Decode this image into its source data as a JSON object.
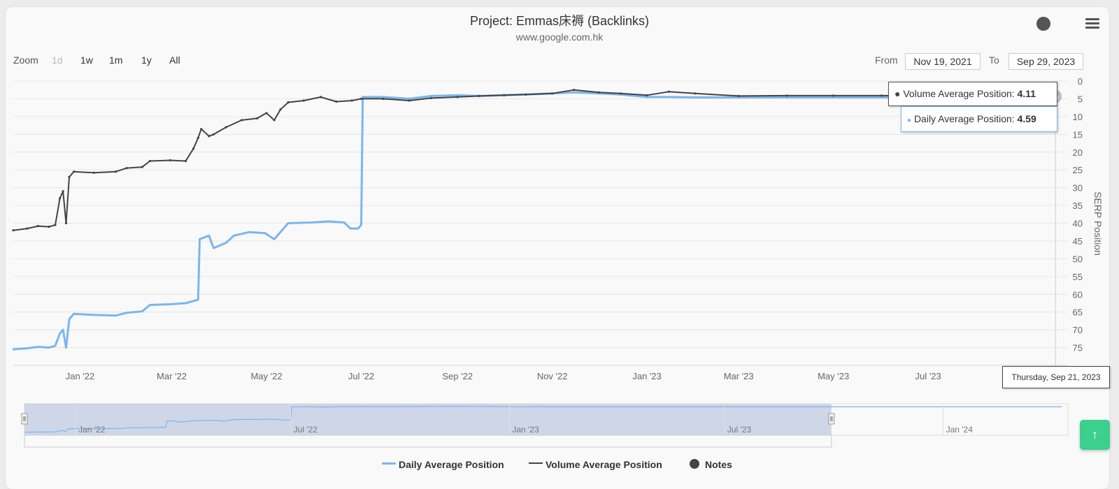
{
  "chart_data": {
    "type": "line",
    "title": "Project: Emmas床褥 (Backlinks)",
    "subtitle": "www.google.com.hk",
    "ylabel": "SERP Position",
    "ylim": [
      0,
      80
    ],
    "y_reversed": true,
    "y_ticks": [
      "0",
      "5",
      "10",
      "15",
      "20",
      "25",
      "30",
      "35",
      "40",
      "45",
      "50",
      "55",
      "60",
      "65",
      "70",
      "75"
    ],
    "x_ticks": [
      "Jan '22",
      "Mar '22",
      "May '22",
      "Jul '22",
      "Sep '22",
      "Nov '22",
      "Jan '23",
      "Mar '23",
      "May '23",
      "Jul '23"
    ],
    "xlim": [
      "2021-11-19",
      "2023-09-29"
    ],
    "series": [
      {
        "name": "Daily Average Position",
        "color": "#7cb5ec",
        "points": [
          [
            "2021-11-19",
            75.5
          ],
          [
            "2021-11-28",
            75.2
          ],
          [
            "2021-12-05",
            74.8
          ],
          [
            "2021-12-12",
            75.0
          ],
          [
            "2021-12-16",
            74.5
          ],
          [
            "2021-12-19",
            71
          ],
          [
            "2021-12-21",
            70
          ],
          [
            "2021-12-23",
            75
          ],
          [
            "2021-12-25",
            67
          ],
          [
            "2021-12-28",
            65.5
          ],
          [
            "2022-01-10",
            65.8
          ],
          [
            "2022-01-24",
            66
          ],
          [
            "2022-01-31",
            65.2
          ],
          [
            "2022-02-10",
            64.8
          ],
          [
            "2022-02-15",
            63
          ],
          [
            "2022-02-28",
            62.8
          ],
          [
            "2022-03-10",
            62.5
          ],
          [
            "2022-03-18",
            61.5
          ],
          [
            "2022-03-19",
            44.5
          ],
          [
            "2022-03-25",
            43.5
          ],
          [
            "2022-03-28",
            47
          ],
          [
            "2022-04-05",
            45.5
          ],
          [
            "2022-04-10",
            43.5
          ],
          [
            "2022-04-20",
            42.5
          ],
          [
            "2022-04-30",
            42.8
          ],
          [
            "2022-05-06",
            44.5
          ],
          [
            "2022-05-10",
            42.5
          ],
          [
            "2022-05-15",
            40
          ],
          [
            "2022-05-30",
            39.8
          ],
          [
            "2022-06-10",
            39.5
          ],
          [
            "2022-06-20",
            39.8
          ],
          [
            "2022-06-24",
            41.5
          ],
          [
            "2022-06-29",
            41.5
          ],
          [
            "2022-07-01",
            40.5
          ],
          [
            "2022-07-02",
            4.5
          ],
          [
            "2022-07-15",
            4.5
          ],
          [
            "2022-08-01",
            5
          ],
          [
            "2022-08-15",
            4.2
          ],
          [
            "2022-09-01",
            4
          ],
          [
            "2022-09-15",
            4.2
          ],
          [
            "2022-10-01",
            4
          ],
          [
            "2022-10-15",
            3.8
          ],
          [
            "2022-11-01",
            3.5
          ],
          [
            "2022-11-15",
            3.2
          ],
          [
            "2022-12-01",
            3.5
          ],
          [
            "2022-12-15",
            3.8
          ],
          [
            "2023-01-01",
            4.5
          ],
          [
            "2023-01-15",
            4.5
          ],
          [
            "2023-02-01",
            4.6
          ],
          [
            "2023-03-01",
            4.6
          ],
          [
            "2023-04-01",
            4.6
          ],
          [
            "2023-05-01",
            4.6
          ],
          [
            "2023-06-01",
            4.6
          ],
          [
            "2023-07-01",
            4.6
          ],
          [
            "2023-08-01",
            4.6
          ],
          [
            "2023-09-21",
            4.59
          ]
        ]
      },
      {
        "name": "Volume Average Position",
        "color": "#434348",
        "points": [
          [
            "2021-11-19",
            42
          ],
          [
            "2021-11-28",
            41.5
          ],
          [
            "2021-12-05",
            40.8
          ],
          [
            "2021-12-12",
            41
          ],
          [
            "2021-12-16",
            40.5
          ],
          [
            "2021-12-19",
            33
          ],
          [
            "2021-12-21",
            31
          ],
          [
            "2021-12-23",
            40
          ],
          [
            "2021-12-25",
            27
          ],
          [
            "2021-12-28",
            25.5
          ],
          [
            "2022-01-10",
            25.8
          ],
          [
            "2022-01-24",
            25.5
          ],
          [
            "2022-01-31",
            24.5
          ],
          [
            "2022-02-10",
            24.2
          ],
          [
            "2022-02-15",
            22.5
          ],
          [
            "2022-02-28",
            22.3
          ],
          [
            "2022-03-10",
            22.5
          ],
          [
            "2022-03-15",
            19
          ],
          [
            "2022-03-18",
            16
          ],
          [
            "2022-03-20",
            13.5
          ],
          [
            "2022-03-25",
            15.5
          ],
          [
            "2022-03-28",
            15
          ],
          [
            "2022-04-05",
            13
          ],
          [
            "2022-04-15",
            11
          ],
          [
            "2022-04-25",
            10.5
          ],
          [
            "2022-05-01",
            9
          ],
          [
            "2022-05-06",
            11
          ],
          [
            "2022-05-10",
            8
          ],
          [
            "2022-05-15",
            6
          ],
          [
            "2022-05-25",
            5.5
          ],
          [
            "2022-06-05",
            4.5
          ],
          [
            "2022-06-15",
            5.8
          ],
          [
            "2022-06-25",
            5.5
          ],
          [
            "2022-07-01",
            5
          ],
          [
            "2022-07-15",
            5
          ],
          [
            "2022-08-01",
            5.5
          ],
          [
            "2022-08-15",
            4.8
          ],
          [
            "2022-09-01",
            4.5
          ],
          [
            "2022-09-15",
            4.2
          ],
          [
            "2022-10-01",
            4
          ],
          [
            "2022-10-15",
            3.8
          ],
          [
            "2022-11-01",
            3.5
          ],
          [
            "2022-11-15",
            2.5
          ],
          [
            "2022-12-01",
            3.2
          ],
          [
            "2022-12-15",
            3.5
          ],
          [
            "2023-01-01",
            4
          ],
          [
            "2023-01-15",
            3
          ],
          [
            "2023-02-01",
            3.5
          ],
          [
            "2023-03-01",
            4.2
          ],
          [
            "2023-04-01",
            4.1
          ],
          [
            "2023-05-01",
            4.1
          ],
          [
            "2023-06-01",
            4.1
          ],
          [
            "2023-07-01",
            4.1
          ],
          [
            "2023-08-01",
            4.1
          ],
          [
            "2023-09-21",
            4.11
          ]
        ]
      }
    ],
    "navigator_ticks": [
      "Jan '22",
      "Jul '22",
      "Jan '23",
      "Jul '23",
      "Jan '24"
    ],
    "navigator_xlim": [
      "2021-11-19",
      "2024-04-15"
    ],
    "legend": [
      "Daily Average Position",
      "Volume Average Position",
      "Notes"
    ],
    "legend_position": "bottom"
  },
  "zoom": {
    "label": "Zoom",
    "buttons": [
      "1d",
      "1w",
      "1m",
      "1y",
      "All"
    ]
  },
  "range": {
    "from_label": "From",
    "from_value": "Nov 19, 2021",
    "to_label": "To",
    "to_value": "Sep 29, 2023"
  },
  "tooltip": {
    "volume_label": "Volume Average Position: ",
    "volume_value": "4.11",
    "daily_label": "Daily Average Position: ",
    "daily_value": "4.59",
    "date": "Thursday, Sep 21, 2023",
    "hover_date": "2023-09-21"
  },
  "colors": {
    "daily": "#7cb5ec",
    "volume": "#434348",
    "scroll_top": "#3dcf8e"
  },
  "icons": {
    "menu": "hamburger-icon",
    "scroll_top": "arrow-up-icon",
    "notes": "dot-icon"
  }
}
